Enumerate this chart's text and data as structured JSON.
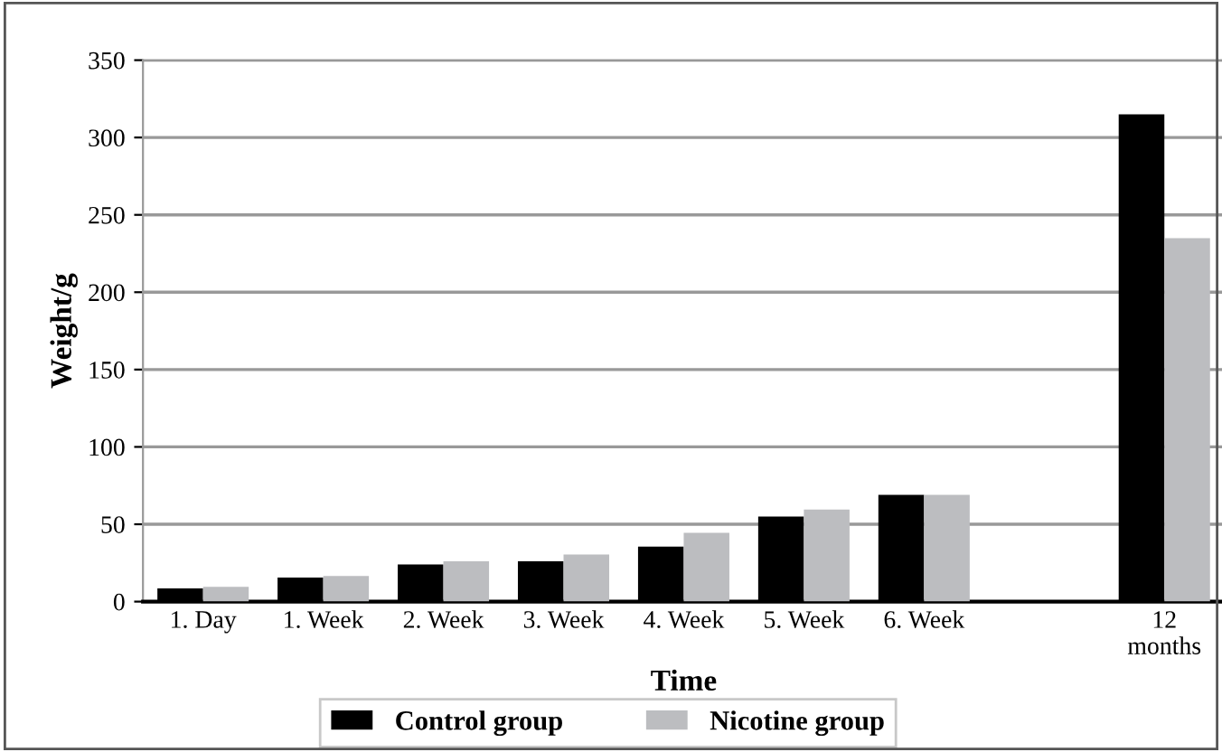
{
  "chart_data": {
    "type": "bar",
    "xlabel": "Time",
    "ylabel": "Weight/g",
    "categories": [
      "1. Day",
      "1. Week",
      "2. Week",
      "3. Week",
      "4. Week",
      "5. Week",
      "6. Week",
      null,
      "12\nmonths"
    ],
    "series": [
      {
        "name": "Control group",
        "color": "#000000",
        "values": [
          8.5,
          15.5,
          24,
          26,
          35.5,
          55,
          69,
          null,
          315
        ]
      },
      {
        "name": "Nicotine group",
        "color": "#bcbdc0",
        "values": [
          9.5,
          16.5,
          26,
          30.5,
          44.5,
          59.5,
          69,
          null,
          235
        ]
      }
    ],
    "ylim": [
      0,
      350
    ],
    "yticks": [
      0,
      50,
      100,
      150,
      200,
      250,
      300,
      350
    ],
    "grid": "y",
    "legend": "bottom"
  }
}
